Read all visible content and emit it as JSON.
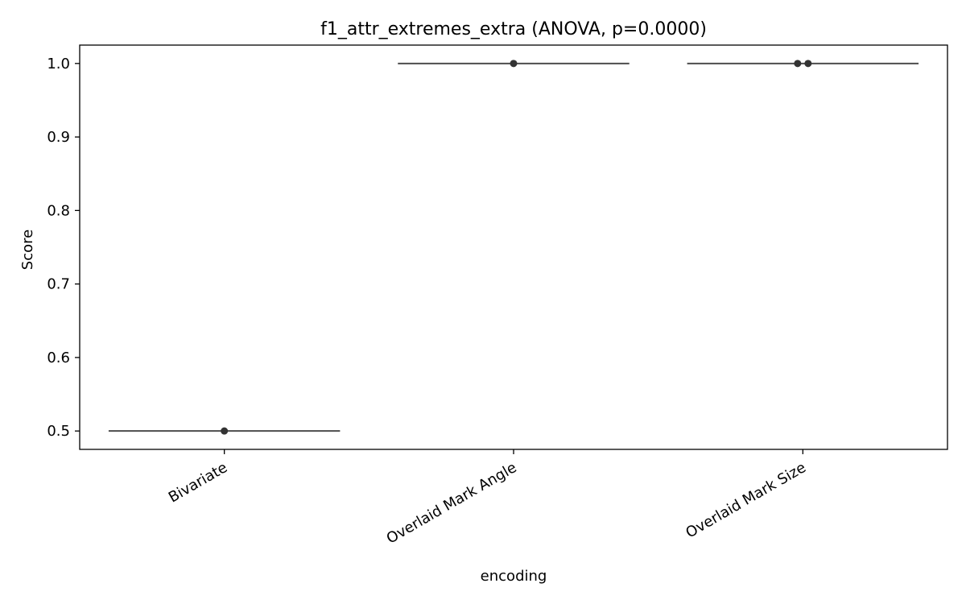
{
  "chart_data": {
    "type": "box",
    "title": "f1_attr_extremes_extra (ANOVA, p=0.0000)",
    "xlabel": "encoding",
    "ylabel": "Score",
    "categories": [
      "Bivariate",
      "Overlaid Mark Angle",
      "Overlaid Mark Size"
    ],
    "ylim": [
      0.475,
      1.025
    ],
    "yticks": [
      0.5,
      0.6,
      0.7,
      0.8,
      0.9,
      1.0
    ],
    "ytick_labels": [
      "0.5",
      "0.6",
      "0.7",
      "0.8",
      "0.9",
      "1.0"
    ],
    "boxes": [
      {
        "category": "Bivariate",
        "min": 0.5,
        "q1": 0.5,
        "median": 0.5,
        "q3": 0.5,
        "max": 0.5,
        "points": [
          0.5
        ]
      },
      {
        "category": "Overlaid Mark Angle",
        "min": 1.0,
        "q1": 1.0,
        "median": 1.0,
        "q3": 1.0,
        "max": 1.0,
        "points": [
          1.0
        ]
      },
      {
        "category": "Overlaid Mark Size",
        "min": 1.0,
        "q1": 1.0,
        "median": 1.0,
        "q3": 1.0,
        "max": 1.0,
        "points": [
          1.0,
          1.0
        ]
      }
    ],
    "grid": false,
    "colors": {
      "box": "#4d4d4d",
      "point": "#333333",
      "axis": "#000000"
    }
  }
}
